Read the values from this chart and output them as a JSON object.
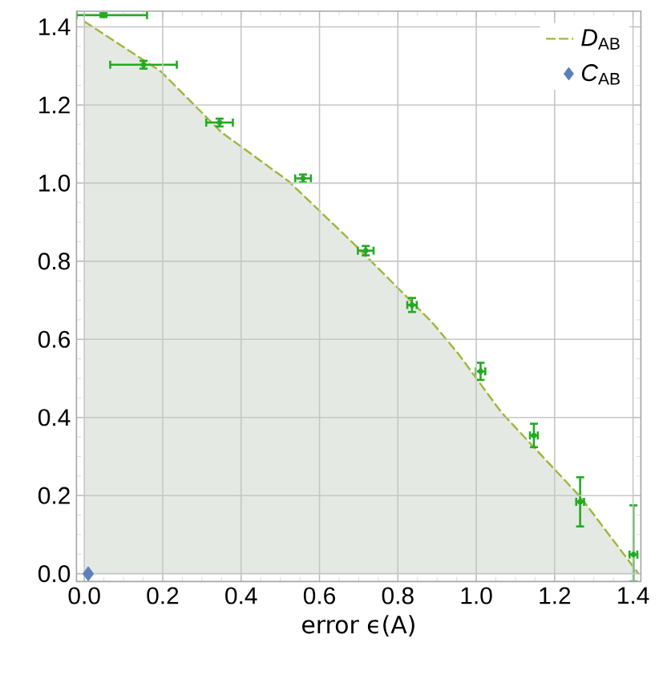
{
  "chart_data": {
    "type": "scatter",
    "xlabel": "error ϵ(A)",
    "xlim": [
      -0.02,
      1.42
    ],
    "ylim": [
      -0.02,
      1.44
    ],
    "xticks": [
      {
        "value": 0,
        "label": "0.0"
      },
      {
        "value": 0.2,
        "label": "0.2"
      },
      {
        "value": 0.4,
        "label": "0.4"
      },
      {
        "value": 0.6,
        "label": "0.6"
      },
      {
        "value": 0.8,
        "label": "0.8"
      },
      {
        "value": 1,
        "label": "1.0"
      },
      {
        "value": 1.2,
        "label": "1.2"
      },
      {
        "value": 1.4,
        "label": "1.4"
      }
    ],
    "yticks": [
      {
        "value": 0,
        "label": "0.0"
      },
      {
        "value": 0.2,
        "label": "0.2"
      },
      {
        "value": 0.4,
        "label": "0.4"
      },
      {
        "value": 0.6,
        "label": "0.6"
      },
      {
        "value": 0.8,
        "label": "0.8"
      },
      {
        "value": 1,
        "label": "1.0"
      },
      {
        "value": 1.2,
        "label": "1.2"
      },
      {
        "value": 1.4,
        "label": "1.4"
      }
    ],
    "grid": true,
    "legend": "top right",
    "series": [
      {
        "type": "area",
        "name": "*D*$_{AB}$",
        "color": "#9bb83a",
        "line_style": "dashed",
        "marker": "none",
        "x": [
          0,
          0.195,
          0.35,
          0.521,
          0.684,
          0.887,
          0.955,
          1.064,
          1.267,
          1.414
        ],
        "values": [
          1.414,
          1.286,
          1.13,
          1.005,
          0.848,
          0.644,
          0.562,
          0.413,
          0.195,
          0.0
        ]
      },
      {
        "name": "*C*$_{AB}$",
        "color": "#5b7fb8",
        "marker": "diamond",
        "x": [
          0.01
        ],
        "values": [
          0.0
        ]
      },
      {
        "color": "#22aa22",
        "marker": "circle",
        "x": [
          0.049,
          0.151,
          0.345,
          0.558,
          0.718,
          0.836,
          1.011,
          1.147,
          1.265,
          1.401
        ],
        "values": [
          1.43,
          1.303,
          1.155,
          1.012,
          0.827,
          0.688,
          0.518,
          0.354,
          0.184,
          0.049
        ],
        "errors": [
          0.005,
          0.01,
          0.01,
          0.01,
          0.012,
          0.018,
          0.022,
          0.03,
          0.063,
          [
            -0.02,
            0.175
          ]
        ],
        "xerrors": [
          [
            -0.02,
            0.16
          ],
          0.085,
          0.034,
          0.02,
          0.02,
          0.012,
          0.012,
          0.01,
          0.01,
          0.01
        ]
      }
    ]
  }
}
